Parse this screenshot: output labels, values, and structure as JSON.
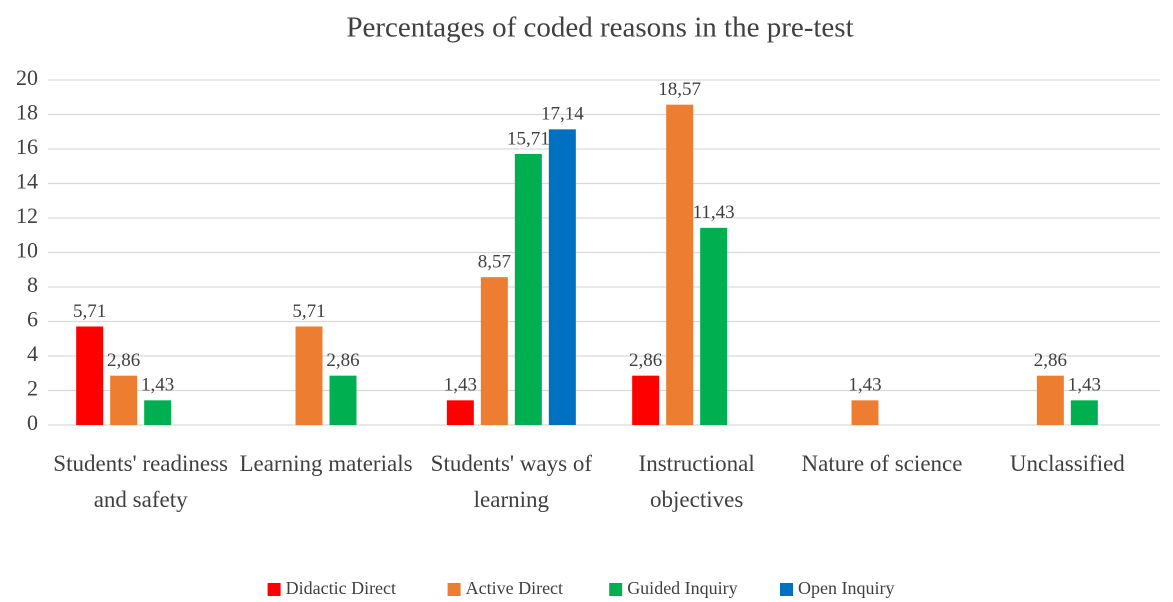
{
  "chart_data": {
    "type": "bar",
    "title": "Percentages of coded reasons in the pre-test",
    "categories": [
      "Students' readiness and safety",
      "Learning materials",
      "Students' ways of learning",
      "Instructional objectives",
      "Nature of science",
      "Unclassified"
    ],
    "series": [
      {
        "name": "Didactic Direct",
        "color": "#ff0000",
        "values": [
          5.71,
          null,
          1.43,
          2.86,
          null,
          null
        ],
        "value_labels": [
          "5,71",
          null,
          "1,43",
          "2,86",
          null,
          null
        ]
      },
      {
        "name": "Active Direct",
        "color": "#ed7d31",
        "values": [
          2.86,
          5.71,
          8.57,
          18.57,
          1.43,
          2.86
        ],
        "value_labels": [
          "2,86",
          "5,71",
          "8,57",
          "18,57",
          "1,43",
          "2,86"
        ]
      },
      {
        "name": "Guided Inquiry",
        "color": "#00b050",
        "values": [
          1.43,
          2.86,
          15.71,
          11.43,
          null,
          1.43
        ],
        "value_labels": [
          "1,43",
          "2,86",
          "15,71",
          "11,43",
          null,
          "1,43"
        ]
      },
      {
        "name": "Open Inquiry",
        "color": "#0070c0",
        "values": [
          null,
          null,
          17.14,
          null,
          null,
          null
        ],
        "value_labels": [
          null,
          null,
          "17,14",
          null,
          null,
          null
        ]
      }
    ],
    "ylim": [
      0,
      20
    ],
    "yticks": [
      0,
      2,
      4,
      6,
      8,
      10,
      12,
      14,
      16,
      18,
      20
    ],
    "grid": true,
    "legend": "bottom"
  }
}
